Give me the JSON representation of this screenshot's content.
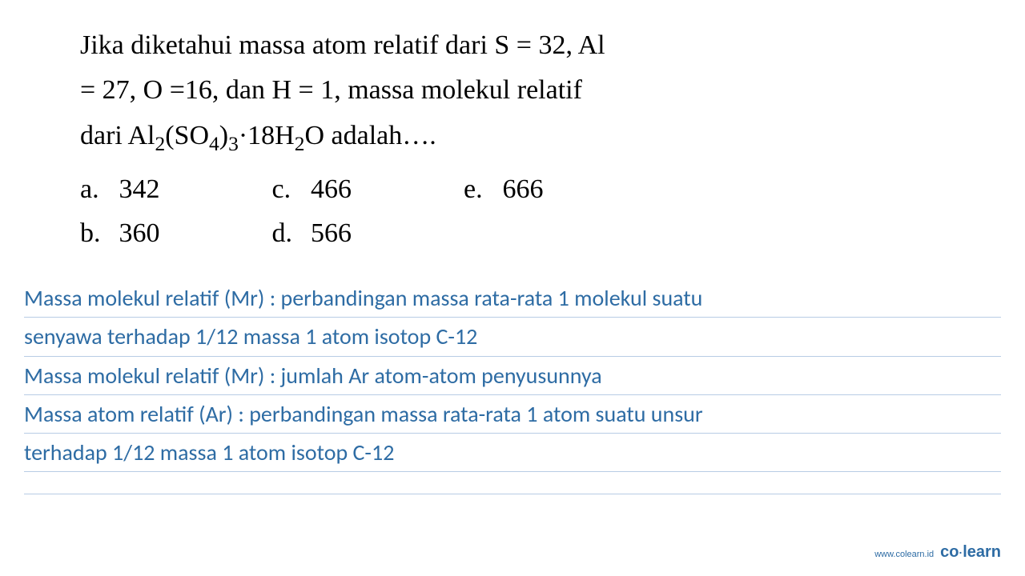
{
  "question": {
    "line1": "Jika diketahui massa atom relatif dari S = 32, Al",
    "line2": "= 27, O =16, dan H = 1, massa molekul relatif",
    "line3_prefix": "dari Al",
    "line3_sub1": "2",
    "line3_mid1": "(SO",
    "line3_sub2": "4",
    "line3_mid2": ")",
    "line3_sub3": "3",
    "line3_mid3": "·18H",
    "line3_sub4": "2",
    "line3_suffix": "O adalah…."
  },
  "options": {
    "a": {
      "label": "a.",
      "value": "342"
    },
    "b": {
      "label": "b.",
      "value": "360"
    },
    "c": {
      "label": "c.",
      "value": "466"
    },
    "d": {
      "label": "d.",
      "value": "566"
    },
    "e": {
      "label": "e.",
      "value": "666"
    }
  },
  "notes": {
    "line1": "Massa molekul relatif (Mr) : perbandingan massa rata-rata 1 molekul suatu",
    "line2": "senyawa terhadap 1/12 massa 1 atom isotop C-12",
    "line3": "Massa molekul relatif (Mr) : jumlah Ar atom-atom penyusunnya",
    "line4": "Massa atom relatif (Ar) : perbandingan massa rata-rata 1 atom suatu unsur",
    "line5": "terhadap 1/12 massa 1 atom isotop C-12"
  },
  "footer": {
    "url": "www.colearn.id",
    "logo_co": "co",
    "logo_dot": "·",
    "logo_learn": "learn"
  },
  "colors": {
    "text_black": "#000000",
    "text_blue": "#2e6ca4",
    "line_blue": "#b8cce4",
    "background": "#ffffff"
  }
}
